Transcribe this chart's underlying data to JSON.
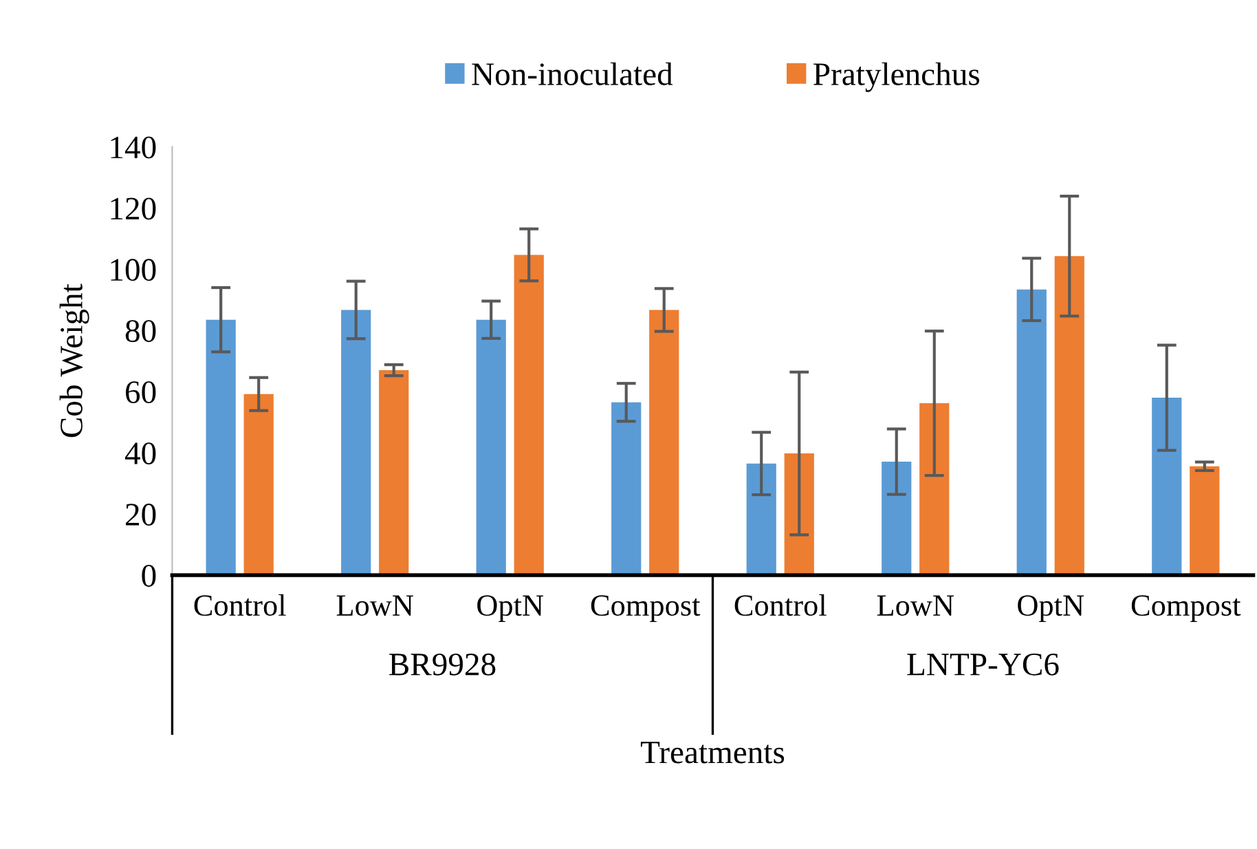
{
  "chart_data": {
    "type": "bar",
    "xlabel": "Treatments",
    "ylabel": "Cob Weight",
    "categories": [
      "Control",
      "LowN",
      "OptN",
      "Compost",
      "Control",
      "LowN",
      "OptN",
      "Compost"
    ],
    "series": [
      {
        "name": "Non-inoculated",
        "color": "#5b9bd5",
        "values": [
          83.5,
          86.7,
          83.5,
          56.5,
          36.5,
          37.1,
          93.4,
          58.0
        ],
        "errors": [
          10.5,
          9.4,
          6.1,
          6.2,
          10.2,
          10.7,
          10.2,
          17.2
        ]
      },
      {
        "name": "Pratylenchus",
        "color": "#ed7d31",
        "values": [
          59.2,
          67.0,
          104.7,
          86.7,
          39.8,
          56.2,
          104.3,
          35.6
        ],
        "errors": [
          5.4,
          1.8,
          8.5,
          7.0,
          26.6,
          23.6,
          19.6,
          1.4
        ]
      }
    ],
    "annotations": [
      "BR9928",
      "LNTP-YC6"
    ],
    "ylim": [
      0,
      140
    ],
    "yticks": [
      0,
      20,
      40,
      60,
      80,
      100,
      120,
      140
    ],
    "grid": false,
    "legend": "top"
  }
}
